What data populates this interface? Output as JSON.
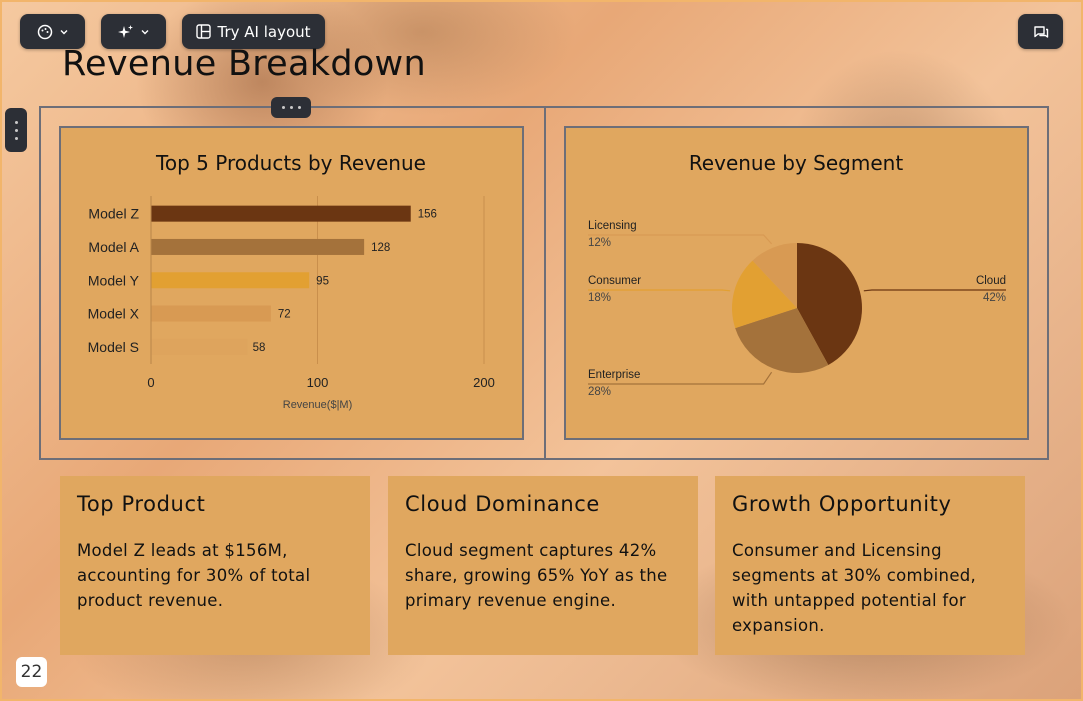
{
  "toolbar": {
    "theme_icon": "palette-icon",
    "magic_icon": "sparkles-icon",
    "ai_layout_label": "Try AI layout",
    "ai_layout_icon": "layout-icon",
    "comment_icon": "comment-icon"
  },
  "slide": {
    "title": "Revenue Breakdown",
    "page_number": "22"
  },
  "colors": {
    "accent_dark": "#6b3612",
    "accent_mid": "#a4723b",
    "accent_light": "#e2a032",
    "accent_pale": "#d89a53",
    "card_bg": "#e0a75f",
    "toolbar_bg": "#2c2f36"
  },
  "chart_data": [
    {
      "type": "bar",
      "orientation": "horizontal",
      "title": "Top 5 Products by Revenue",
      "categories": [
        "Model Z",
        "Model A",
        "Model Y",
        "Model X",
        "Model S"
      ],
      "values": [
        156,
        128,
        95,
        72,
        58
      ],
      "value_labels": [
        "156",
        "128",
        "95",
        "72",
        "58"
      ],
      "xlabel": "Revenue($|M)",
      "xlim": [
        0,
        200
      ],
      "xticks": [
        "0",
        "100",
        "200"
      ],
      "grid": true,
      "bar_colors": [
        "#6b3612",
        "#a4723b",
        "#e2a032",
        "#d89a53",
        "#d9a05c"
      ]
    },
    {
      "type": "pie",
      "title": "Revenue by Segment",
      "slices": [
        {
          "label": "Cloud",
          "percent_label": "42%",
          "value": 42,
          "color": "#6b3612"
        },
        {
          "label": "Enterprise",
          "percent_label": "28%",
          "value": 28,
          "color": "#a4723b"
        },
        {
          "label": "Consumer",
          "percent_label": "18%",
          "value": 18,
          "color": "#e2a032"
        },
        {
          "label": "Licensing",
          "percent_label": "12%",
          "value": 12,
          "color": "#d89a53"
        }
      ]
    }
  ],
  "insights": [
    {
      "title": "Top Product",
      "body": "Model Z leads at $156M, accounting for 30% of total product revenue."
    },
    {
      "title": "Cloud Dominance",
      "body": "Cloud segment captures 42% share, growing 65% YoY as the primary revenue engine."
    },
    {
      "title": "Growth Opportunity",
      "body": "Consumer and Licensing segments at 30% combined, with untapped potential for expansion."
    }
  ]
}
